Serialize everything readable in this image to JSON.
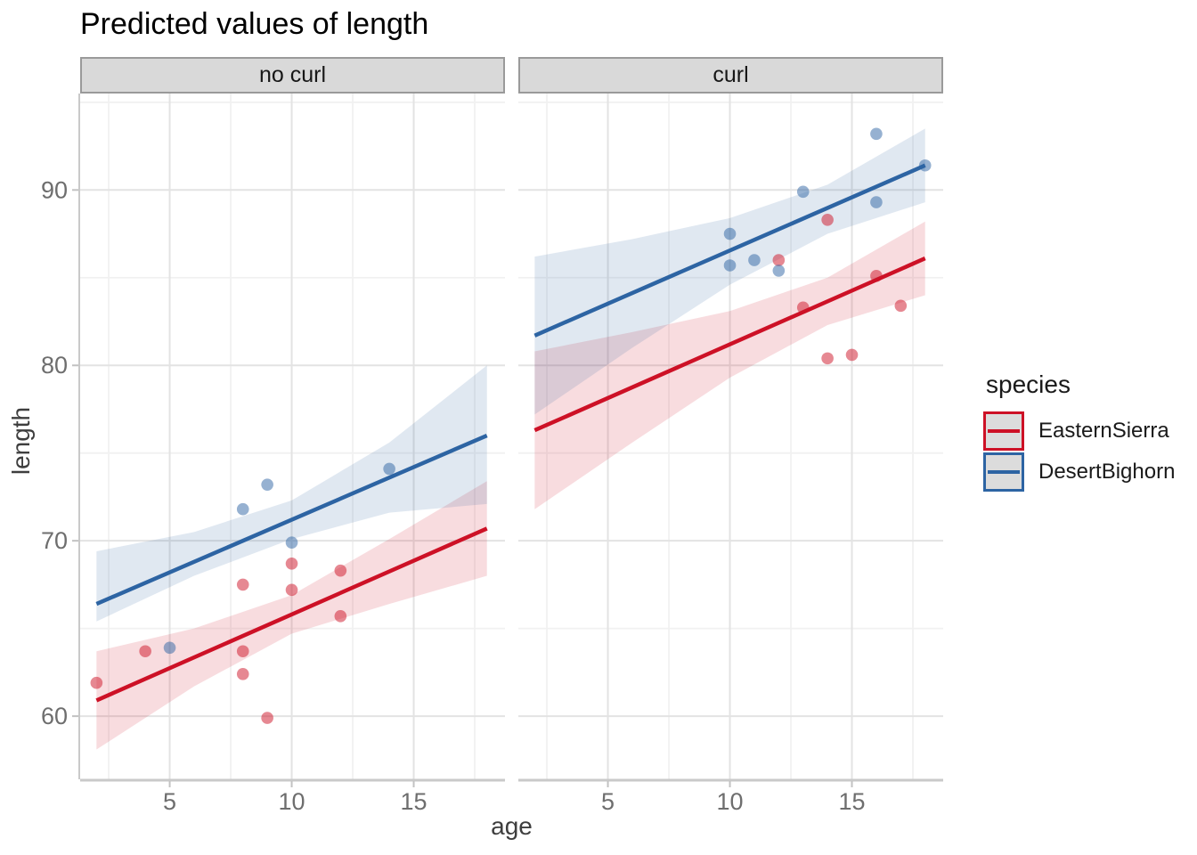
{
  "title": "Predicted values of length",
  "facets": [
    "no curl",
    "curl"
  ],
  "x_axis_title": "age",
  "y_axis_title": "length",
  "legend": {
    "title": "species",
    "items": [
      {
        "label": "EasternSierra",
        "color": "#CD1126"
      },
      {
        "label": "DesertBighorn",
        "color": "#2D64A3"
      }
    ]
  },
  "chart_data": [
    {
      "type": "scatter",
      "facet": "no curl",
      "xlabel": "age",
      "ylabel": "length",
      "xlim": [
        1.33,
        18.74
      ],
      "ylim": [
        56.4,
        95.5
      ],
      "x_ticks": [
        5,
        10,
        15
      ],
      "y_ticks": [
        60,
        70,
        80,
        90
      ],
      "x_minor_gridlines": [
        2.5,
        7.5,
        12.5,
        17.5
      ],
      "y_minor_gridlines": [
        65,
        75,
        85,
        95
      ],
      "grid": true,
      "series": [
        {
          "name": "EasternSierra",
          "color": "#CD1126",
          "points": {
            "x": [
              2,
              4,
              8,
              8,
              8,
              9,
              10,
              10,
              12,
              12
            ],
            "y": [
              61.9,
              63.7,
              67.5,
              63.7,
              62.4,
              59.9,
              68.7,
              67.2,
              68.3,
              65.7
            ]
          },
          "trend_line": {
            "x": [
              2,
              18
            ],
            "y": [
              60.9,
              70.7
            ]
          },
          "ribbon": {
            "x": [
              2,
              6,
              10,
              14,
              18
            ],
            "upper": [
              63.7,
              65.0,
              66.9,
              70.1,
              73.4
            ],
            "lower": [
              58.1,
              61.7,
              64.7,
              66.4,
              68.0
            ]
          }
        },
        {
          "name": "DesertBighorn",
          "color": "#2D64A3",
          "points": {
            "x": [
              5,
              8,
              9,
              10,
              14
            ],
            "y": [
              63.9,
              71.8,
              73.2,
              69.9,
              74.1
            ]
          },
          "trend_line": {
            "x": [
              2,
              18
            ],
            "y": [
              66.4,
              76.0
            ]
          },
          "ribbon": {
            "x": [
              2,
              6,
              10,
              14,
              18
            ],
            "upper": [
              69.4,
              70.5,
              72.3,
              75.6,
              80.0
            ],
            "lower": [
              65.4,
              68.0,
              70.1,
              71.6,
              72.1
            ]
          }
        }
      ]
    },
    {
      "type": "scatter",
      "facet": "curl",
      "xlabel": "age",
      "ylabel": "length",
      "xlim": [
        1.33,
        18.74
      ],
      "ylim": [
        56.4,
        95.5
      ],
      "x_ticks": [
        5,
        10,
        15
      ],
      "y_ticks": [
        60,
        70,
        80,
        90
      ],
      "x_minor_gridlines": [
        2.5,
        7.5,
        12.5,
        17.5
      ],
      "y_minor_gridlines": [
        65,
        75,
        85,
        95
      ],
      "grid": true,
      "series": [
        {
          "name": "EasternSierra",
          "color": "#CD1126",
          "points": {
            "x": [
              12,
              13,
              14,
              14,
              15,
              16,
              17
            ],
            "y": [
              86.0,
              83.3,
              88.3,
              80.4,
              80.6,
              85.1,
              83.4
            ]
          },
          "trend_line": {
            "x": [
              2,
              18
            ],
            "y": [
              76.3,
              86.1
            ]
          },
          "ribbon": {
            "x": [
              2,
              6,
              10,
              14,
              18
            ],
            "upper": [
              80.8,
              81.9,
              83.1,
              85.0,
              88.2
            ],
            "lower": [
              71.8,
              75.6,
              79.3,
              82.3,
              84.0
            ]
          }
        },
        {
          "name": "DesertBighorn",
          "color": "#2D64A3",
          "points": {
            "x": [
              10,
              10,
              11,
              12,
              13,
              16,
              16,
              18
            ],
            "y": [
              87.5,
              85.7,
              86.0,
              85.4,
              89.9,
              93.2,
              89.3,
              91.4
            ]
          },
          "trend_line": {
            "x": [
              2,
              18
            ],
            "y": [
              81.7,
              91.4
            ]
          },
          "ribbon": {
            "x": [
              2,
              6,
              10,
              14,
              18
            ],
            "upper": [
              86.2,
              87.2,
              88.4,
              90.3,
              93.5
            ],
            "lower": [
              77.2,
              81.0,
              84.6,
              87.5,
              89.3
            ]
          }
        }
      ]
    }
  ]
}
